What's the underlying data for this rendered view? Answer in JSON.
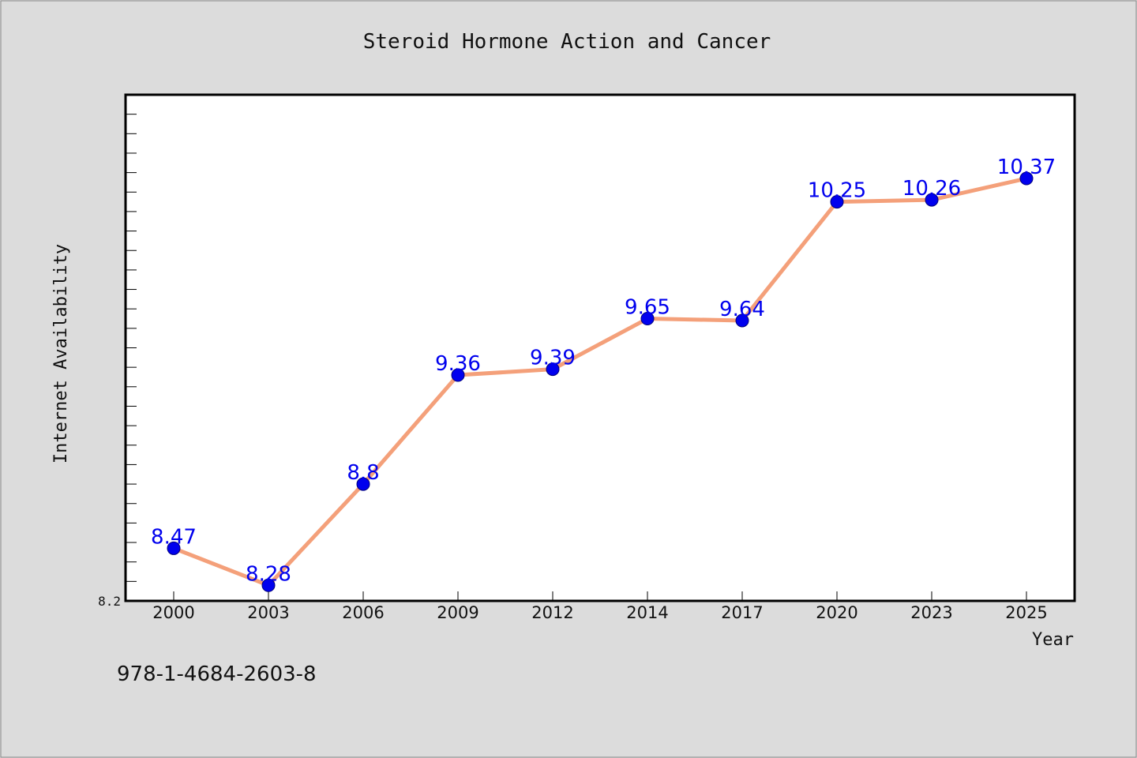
{
  "chart_data": {
    "type": "line",
    "title": "Steroid Hormone Action and Cancer",
    "xlabel": "Year",
    "ylabel": "Internet Availability",
    "categories": [
      "2000",
      "2003",
      "2006",
      "2009",
      "2012",
      "2014",
      "2017",
      "2020",
      "2023",
      "2025"
    ],
    "series": [
      {
        "values": [
          8.47,
          8.28,
          8.8,
          9.36,
          9.39,
          9.65,
          9.64,
          10.25,
          10.26,
          10.37
        ],
        "line_color": "#f4a07a",
        "marker_color": "#0000ee"
      }
    ],
    "data_labels": [
      "8.47",
      "8.28",
      "8.8",
      "9.36",
      "9.39",
      "9.65",
      "9.64",
      "10.25",
      "10.26",
      "10.37"
    ],
    "ylim": [
      8.2,
      10.8
    ],
    "yticks_labeled": [
      "8.2"
    ],
    "grid": false
  },
  "footer": {
    "isbn": "978-1-4684-2603-8"
  }
}
